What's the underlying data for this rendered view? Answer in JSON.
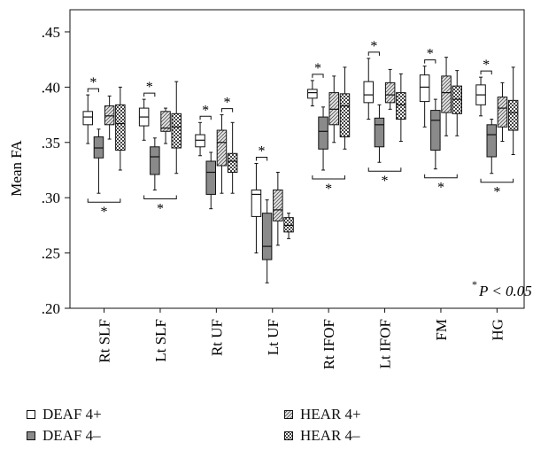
{
  "chart_data": {
    "type": "boxplot",
    "ylabel": "Mean FA",
    "ylim": [
      0.2,
      0.47
    ],
    "yticks": [
      ".20",
      ".25",
      ".30",
      ".35",
      ".40",
      ".45"
    ],
    "categories": [
      "Rt SLF",
      "Lt SLF",
      "Rt UF",
      "Lt UF",
      "Rt IFOF",
      "Lt IFOF",
      "FM",
      "HG"
    ],
    "grid": false,
    "legend_placement": "bottom",
    "series": [
      {
        "name": "DEAF 4+",
        "fill": "white",
        "boxes": [
          {
            "min": 0.349,
            "q1": 0.366,
            "median": 0.373,
            "q3": 0.378,
            "max": 0.393
          },
          {
            "min": 0.352,
            "q1": 0.365,
            "median": 0.373,
            "q3": 0.381,
            "max": 0.389
          },
          {
            "min": 0.338,
            "q1": 0.346,
            "median": 0.352,
            "q3": 0.357,
            "max": 0.368
          },
          {
            "min": 0.25,
            "q1": 0.283,
            "median": 0.303,
            "q3": 0.307,
            "max": 0.331
          },
          {
            "min": 0.383,
            "q1": 0.39,
            "median": 0.395,
            "q3": 0.398,
            "max": 0.406
          },
          {
            "min": 0.371,
            "q1": 0.386,
            "median": 0.393,
            "q3": 0.405,
            "max": 0.426
          },
          {
            "min": 0.364,
            "q1": 0.387,
            "median": 0.4,
            "q3": 0.411,
            "max": 0.419
          },
          {
            "min": 0.374,
            "q1": 0.384,
            "median": 0.393,
            "q3": 0.402,
            "max": 0.409
          }
        ]
      },
      {
        "name": "DEAF 4–",
        "fill": "gray",
        "boxes": [
          {
            "min": 0.304,
            "q1": 0.336,
            "median": 0.345,
            "q3": 0.355,
            "max": 0.362
          },
          {
            "min": 0.307,
            "q1": 0.321,
            "median": 0.337,
            "q3": 0.346,
            "max": 0.354
          },
          {
            "min": 0.29,
            "q1": 0.303,
            "median": 0.323,
            "q3": 0.333,
            "max": 0.341
          },
          {
            "min": 0.223,
            "q1": 0.244,
            "median": 0.256,
            "q3": 0.286,
            "max": 0.298
          },
          {
            "min": 0.325,
            "q1": 0.344,
            "median": 0.36,
            "q3": 0.373,
            "max": 0.382
          },
          {
            "min": 0.332,
            "q1": 0.346,
            "median": 0.366,
            "q3": 0.372,
            "max": 0.384
          },
          {
            "min": 0.326,
            "q1": 0.343,
            "median": 0.37,
            "q3": 0.379,
            "max": 0.389
          },
          {
            "min": 0.322,
            "q1": 0.337,
            "median": 0.357,
            "q3": 0.366,
            "max": 0.371
          }
        ]
      },
      {
        "name": "HEAR 4+",
        "fill": "hatch",
        "boxes": [
          {
            "min": 0.353,
            "q1": 0.366,
            "median": 0.374,
            "q3": 0.383,
            "max": 0.392
          },
          {
            "min": 0.349,
            "q1": 0.36,
            "median": 0.363,
            "q3": 0.378,
            "max": 0.381
          },
          {
            "min": 0.304,
            "q1": 0.329,
            "median": 0.35,
            "q3": 0.361,
            "max": 0.375
          },
          {
            "min": 0.257,
            "q1": 0.279,
            "median": 0.289,
            "q3": 0.307,
            "max": 0.323
          },
          {
            "min": 0.35,
            "q1": 0.366,
            "median": 0.38,
            "q3": 0.395,
            "max": 0.41
          },
          {
            "min": 0.38,
            "q1": 0.386,
            "median": 0.393,
            "q3": 0.404,
            "max": 0.416
          },
          {
            "min": 0.356,
            "q1": 0.377,
            "median": 0.395,
            "q3": 0.41,
            "max": 0.427
          },
          {
            "min": 0.351,
            "q1": 0.364,
            "median": 0.381,
            "q3": 0.391,
            "max": 0.404
          }
        ]
      },
      {
        "name": "HEAR 4–",
        "fill": "checker",
        "boxes": [
          {
            "min": 0.325,
            "q1": 0.343,
            "median": 0.367,
            "q3": 0.384,
            "max": 0.4
          },
          {
            "min": 0.322,
            "q1": 0.345,
            "median": 0.364,
            "q3": 0.376,
            "max": 0.405
          },
          {
            "min": 0.304,
            "q1": 0.323,
            "median": 0.333,
            "q3": 0.34,
            "max": 0.368
          },
          {
            "min": 0.263,
            "q1": 0.269,
            "median": 0.275,
            "q3": 0.282,
            "max": 0.286
          },
          {
            "min": 0.344,
            "q1": 0.355,
            "median": 0.383,
            "q3": 0.394,
            "max": 0.418
          },
          {
            "min": 0.351,
            "q1": 0.371,
            "median": 0.384,
            "q3": 0.395,
            "max": 0.412
          },
          {
            "min": 0.356,
            "q1": 0.376,
            "median": 0.389,
            "q3": 0.401,
            "max": 0.415
          },
          {
            "min": 0.339,
            "q1": 0.361,
            "median": 0.377,
            "q3": 0.388,
            "max": 0.418
          }
        ]
      }
    ],
    "significance": {
      "upper_bracket_pairs": [
        "DEAF 4+",
        "DEAF 4–"
      ],
      "upper_bracket_categories": [
        "Rt SLF",
        "Lt SLF",
        "Rt UF",
        "Lt UF",
        "Rt IFOF",
        "Lt IFOF",
        "FM",
        "HG"
      ],
      "upper_bracket_extra": [
        {
          "category": "Rt UF",
          "pair": [
            "HEAR 4+",
            "HEAR 4–"
          ]
        }
      ],
      "lower_bracket_categories": [
        "Rt SLF",
        "Lt SLF",
        "Rt IFOF",
        "Lt IFOF",
        "FM",
        "HG"
      ],
      "marker": "*"
    },
    "annotation": {
      "star": "*",
      "text": "P < 0.05"
    }
  }
}
